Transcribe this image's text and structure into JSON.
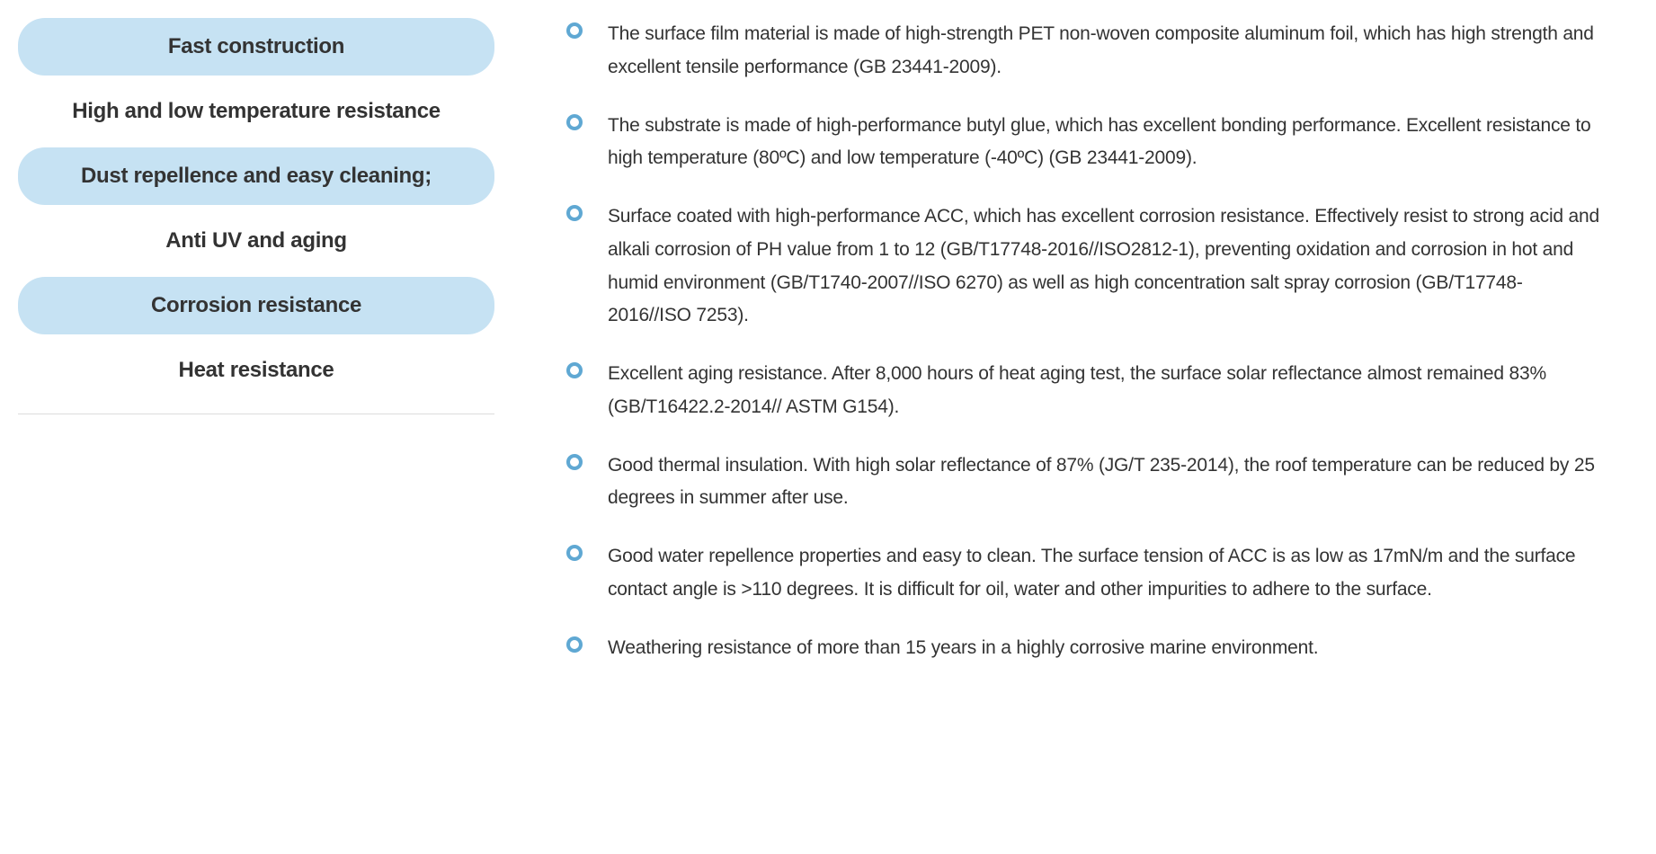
{
  "features": {
    "items": [
      {
        "label": "Fast construction",
        "highlighted": true
      },
      {
        "label": "High and low temperature resistance",
        "highlighted": false
      },
      {
        "label": "Dust repellence and easy cleaning;",
        "highlighted": true
      },
      {
        "label": "Anti UV and aging",
        "highlighted": false
      },
      {
        "label": "Corrosion resistance",
        "highlighted": true
      },
      {
        "label": "Heat resistance",
        "highlighted": false
      }
    ],
    "highlight_bg_color": "#c6e2f3",
    "text_color": "#333333",
    "font_size": 24,
    "font_weight": 700,
    "border_radius": 30,
    "divider_color": "#dddddd"
  },
  "bullets": {
    "items": [
      "The surface film material is made of high-strength PET non-woven composite aluminum foil, which has high strength and excellent tensile performance (GB 23441-2009).",
      "The substrate is made of high-performance butyl glue, which has excellent bonding performance. Excellent resistance to high temperature (80ºC) and low temperature (-40ºC) (GB 23441-2009).",
      "Surface coated with high-performance ACC, which has excellent corrosion resistance. Effectively resist to strong acid and alkali corrosion of PH value from 1 to 12 (GB/T17748-2016//ISO2812-1), preventing oxidation and corrosion in hot and humid environment (GB/T1740-2007//ISO 6270) as well as high concentration salt spray corrosion (GB/T17748-2016//ISO 7253).",
      "Excellent aging resistance. After 8,000 hours of heat aging test, the surface solar reflectance almost remained 83% (GB/T16422.2-2014// ASTM G154).",
      "Good thermal insulation. With high solar reflectance of 87% (JG/T 235-2014), the roof temperature can be reduced by 25 degrees in summer after use.",
      "Good water repellence properties and easy to clean. The surface tension of ACC is as low as 17mN/m and the surface contact angle is >110 degrees. It is difficult for oil, water and other impurities to adhere to the surface.",
      "Weathering resistance of more than 15 years in a highly corrosive marine environment."
    ],
    "icon_color": "#5fa8d3",
    "icon_border_width": 4,
    "icon_size": 18,
    "text_color": "#333333",
    "font_size": 21,
    "line_height": 1.75
  },
  "layout": {
    "background_color": "#ffffff",
    "left_column_width": 530,
    "column_gap": 80
  }
}
